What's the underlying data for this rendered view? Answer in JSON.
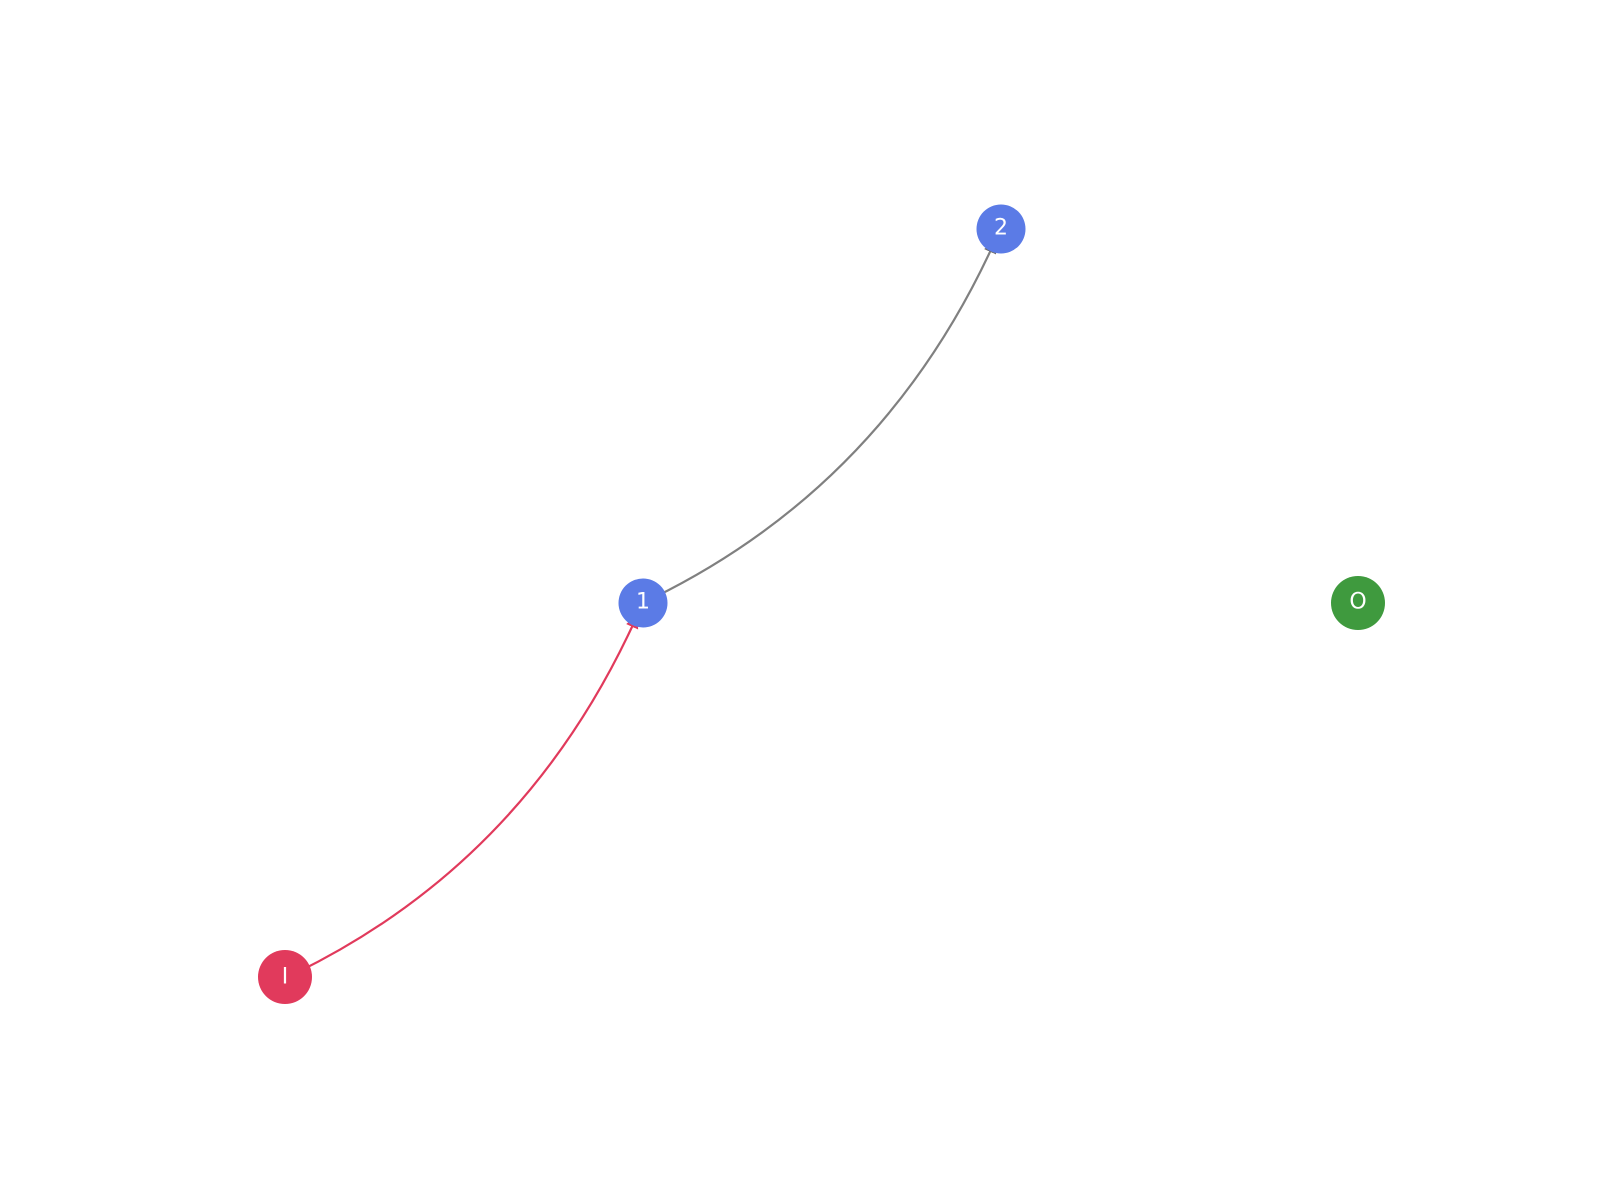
{
  "colors": {
    "background": "#ffffff",
    "input_node": "#e13a5c",
    "hidden_node": "#5b7be6",
    "output_node": "#3f9a3e",
    "input_edge": "#e13a5c",
    "default_edge": "#808080",
    "node_label": "#ffffff"
  },
  "nodes": [
    {
      "id": "I",
      "label": "I",
      "role": "input"
    },
    {
      "id": "1",
      "label": "1",
      "role": "hidden"
    },
    {
      "id": "2",
      "label": "2",
      "role": "hidden"
    },
    {
      "id": "O",
      "label": "O",
      "role": "output"
    }
  ],
  "edges": [
    {
      "from": "I",
      "to": "1",
      "style": "input"
    },
    {
      "from": "1",
      "to": "2",
      "style": "default"
    }
  ]
}
